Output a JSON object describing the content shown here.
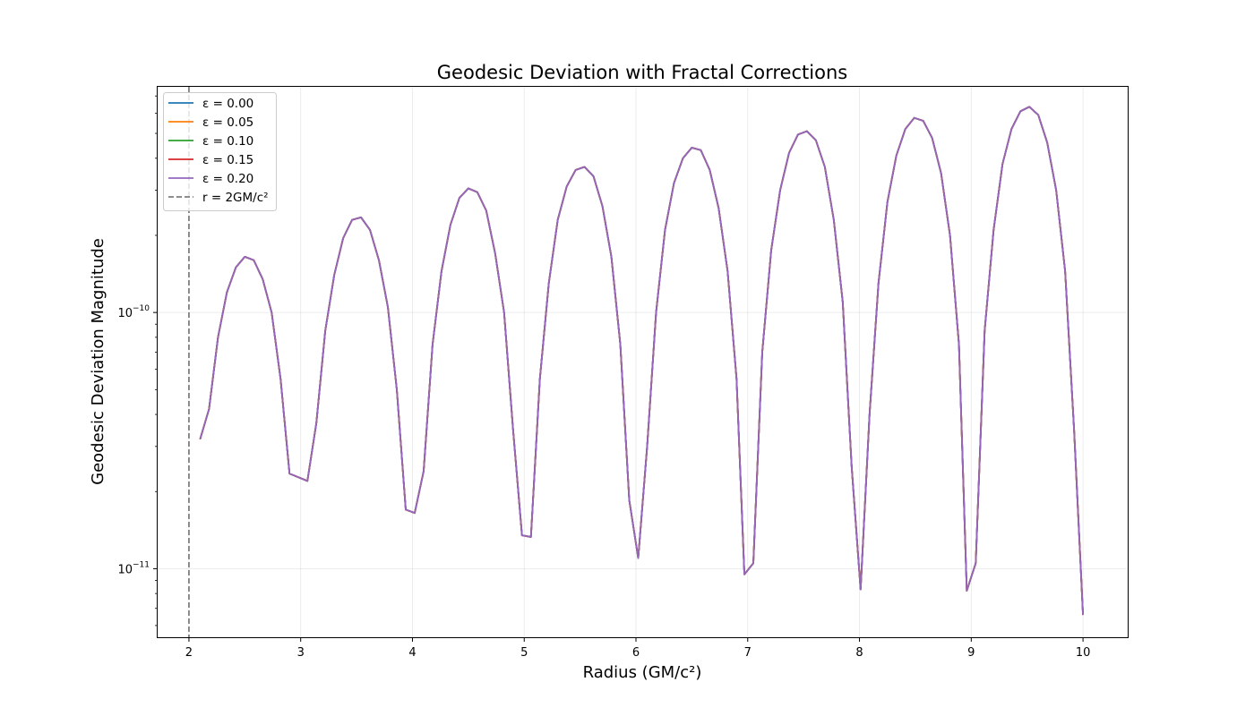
{
  "chart_data": {
    "type": "line",
    "title": "Geodesic Deviation with Fractal Corrections",
    "xlabel": "Radius (GM/c²)",
    "ylabel": "Geodesic Deviation Magnitude",
    "xlim": [
      1.72,
      10.4
    ],
    "ylim": [
      5.4e-12,
      7.6e-10
    ],
    "yscale": "log",
    "grid": true,
    "legend_position": "top-left",
    "x_ticks": [
      2,
      3,
      4,
      5,
      6,
      7,
      8,
      9,
      10
    ],
    "x_tick_labels": [
      "2",
      "3",
      "4",
      "5",
      "6",
      "7",
      "8",
      "9",
      "10"
    ],
    "y_ticks": [
      1e-10,
      1e-11
    ],
    "y_tick_labels": [
      {
        "base": "10",
        "exp": "−10"
      },
      {
        "base": "10",
        "exp": "−11"
      }
    ],
    "x": [
      2.1,
      2.18,
      2.26,
      2.34,
      2.42,
      2.5,
      2.58,
      2.66,
      2.74,
      2.82,
      2.9,
      3.06,
      3.14,
      3.22,
      3.3,
      3.38,
      3.46,
      3.54,
      3.62,
      3.7,
      3.78,
      3.86,
      3.94,
      4.02,
      4.1,
      4.18,
      4.26,
      4.34,
      4.42,
      4.5,
      4.58,
      4.66,
      4.74,
      4.82,
      4.9,
      4.98,
      5.06,
      5.14,
      5.22,
      5.3,
      5.38,
      5.46,
      5.54,
      5.62,
      5.7,
      5.78,
      5.86,
      5.94,
      6.02,
      6.1,
      6.18,
      6.26,
      6.34,
      6.42,
      6.5,
      6.58,
      6.66,
      6.74,
      6.82,
      6.9,
      6.97,
      7.05,
      7.13,
      7.21,
      7.29,
      7.37,
      7.45,
      7.53,
      7.61,
      7.69,
      7.77,
      7.85,
      7.93,
      8.01,
      8.09,
      8.17,
      8.25,
      8.33,
      8.41,
      8.49,
      8.57,
      8.65,
      8.73,
      8.81,
      8.89,
      8.96,
      9.04,
      9.12,
      9.2,
      9.28,
      9.36,
      9.44,
      9.52,
      9.6,
      9.68,
      9.76,
      9.84,
      9.92,
      10.0
    ],
    "series": [
      {
        "name": "ε = 0.00",
        "color": "#1f77b4",
        "style": "solid",
        "values": [
          3.2e-11,
          4.2e-11,
          8e-11,
          1.2e-10,
          1.5e-10,
          1.65e-10,
          1.6e-10,
          1.35e-10,
          1e-10,
          5.5e-11,
          2.35e-11,
          2.2e-11,
          3.7e-11,
          8.5e-11,
          1.4e-10,
          1.95e-10,
          2.3e-10,
          2.35e-10,
          2.1e-10,
          1.6e-10,
          1.05e-10,
          5e-11,
          1.7e-11,
          1.65e-11,
          2.4e-11,
          7.5e-11,
          1.45e-10,
          2.2e-10,
          2.8e-10,
          3.05e-10,
          2.95e-10,
          2.5e-10,
          1.7e-10,
          1e-10,
          3.5e-11,
          1.35e-11,
          1.33e-11,
          5.5e-11,
          1.3e-10,
          2.3e-10,
          3.1e-10,
          3.6e-10,
          3.7e-10,
          3.4e-10,
          2.6e-10,
          1.65e-10,
          7.5e-11,
          1.85e-11,
          1.1e-11,
          3e-11,
          1e-10,
          2.1e-10,
          3.2e-10,
          4e-10,
          4.4e-10,
          4.3e-10,
          3.6e-10,
          2.55e-10,
          1.45e-10,
          5.5e-11,
          9.5e-12,
          1.05e-11,
          7e-11,
          1.75e-10,
          3e-10,
          4.2e-10,
          4.95e-10,
          5.1e-10,
          4.7e-10,
          3.7e-10,
          2.3e-10,
          1.1e-10,
          2.5e-11,
          8.3e-12,
          4e-11,
          1.3e-10,
          2.7e-10,
          4.1e-10,
          5.2e-10,
          5.75e-10,
          5.6e-10,
          4.8e-10,
          3.5e-10,
          2e-10,
          7.5e-11,
          8.2e-12,
          1.05e-11,
          8.5e-11,
          2.1e-10,
          3.8e-10,
          5.2e-10,
          6.1e-10,
          6.35e-10,
          5.9e-10,
          4.6e-10,
          3e-10,
          1.45e-10,
          3.5e-11,
          6.6e-12
        ]
      },
      {
        "name": "ε = 0.05",
        "color": "#ff7f0e",
        "style": "solid",
        "values": [
          3.2e-11,
          4.2e-11,
          8e-11,
          1.2e-10,
          1.5e-10,
          1.65e-10,
          1.6e-10,
          1.35e-10,
          1e-10,
          5.5e-11,
          2.35e-11,
          2.2e-11,
          3.7e-11,
          8.5e-11,
          1.4e-10,
          1.95e-10,
          2.3e-10,
          2.35e-10,
          2.1e-10,
          1.6e-10,
          1.05e-10,
          5e-11,
          1.7e-11,
          1.65e-11,
          2.4e-11,
          7.5e-11,
          1.45e-10,
          2.2e-10,
          2.8e-10,
          3.05e-10,
          2.95e-10,
          2.5e-10,
          1.7e-10,
          1e-10,
          3.5e-11,
          1.35e-11,
          1.33e-11,
          5.5e-11,
          1.3e-10,
          2.3e-10,
          3.1e-10,
          3.6e-10,
          3.7e-10,
          3.4e-10,
          2.6e-10,
          1.65e-10,
          7.5e-11,
          1.85e-11,
          1.1e-11,
          3e-11,
          1e-10,
          2.1e-10,
          3.2e-10,
          4e-10,
          4.4e-10,
          4.3e-10,
          3.6e-10,
          2.55e-10,
          1.45e-10,
          5.5e-11,
          9.5e-12,
          1.05e-11,
          7e-11,
          1.75e-10,
          3e-10,
          4.2e-10,
          4.95e-10,
          5.1e-10,
          4.7e-10,
          3.7e-10,
          2.3e-10,
          1.1e-10,
          2.5e-11,
          8.3e-12,
          4e-11,
          1.3e-10,
          2.7e-10,
          4.1e-10,
          5.2e-10,
          5.75e-10,
          5.6e-10,
          4.8e-10,
          3.5e-10,
          2e-10,
          7.5e-11,
          8.2e-12,
          1.05e-11,
          8.5e-11,
          2.1e-10,
          3.8e-10,
          5.2e-10,
          6.1e-10,
          6.35e-10,
          5.9e-10,
          4.6e-10,
          3e-10,
          1.45e-10,
          3.5e-11,
          6.6e-12
        ]
      },
      {
        "name": "ε = 0.10",
        "color": "#2ca02c",
        "style": "solid",
        "values": [
          3.2e-11,
          4.2e-11,
          8e-11,
          1.2e-10,
          1.5e-10,
          1.65e-10,
          1.6e-10,
          1.35e-10,
          1e-10,
          5.5e-11,
          2.35e-11,
          2.2e-11,
          3.7e-11,
          8.5e-11,
          1.4e-10,
          1.95e-10,
          2.3e-10,
          2.35e-10,
          2.1e-10,
          1.6e-10,
          1.05e-10,
          5e-11,
          1.7e-11,
          1.65e-11,
          2.4e-11,
          7.5e-11,
          1.45e-10,
          2.2e-10,
          2.8e-10,
          3.05e-10,
          2.95e-10,
          2.5e-10,
          1.7e-10,
          1e-10,
          3.5e-11,
          1.35e-11,
          1.33e-11,
          5.5e-11,
          1.3e-10,
          2.3e-10,
          3.1e-10,
          3.6e-10,
          3.7e-10,
          3.4e-10,
          2.6e-10,
          1.65e-10,
          7.5e-11,
          1.85e-11,
          1.1e-11,
          3e-11,
          1e-10,
          2.1e-10,
          3.2e-10,
          4e-10,
          4.4e-10,
          4.3e-10,
          3.6e-10,
          2.55e-10,
          1.45e-10,
          5.5e-11,
          9.5e-12,
          1.05e-11,
          7e-11,
          1.75e-10,
          3e-10,
          4.2e-10,
          4.95e-10,
          5.1e-10,
          4.7e-10,
          3.7e-10,
          2.3e-10,
          1.1e-10,
          2.5e-11,
          8.3e-12,
          4e-11,
          1.3e-10,
          2.7e-10,
          4.1e-10,
          5.2e-10,
          5.75e-10,
          5.6e-10,
          4.8e-10,
          3.5e-10,
          2e-10,
          7.5e-11,
          8.2e-12,
          1.05e-11,
          8.5e-11,
          2.1e-10,
          3.8e-10,
          5.2e-10,
          6.1e-10,
          6.35e-10,
          5.9e-10,
          4.6e-10,
          3e-10,
          1.45e-10,
          3.5e-11,
          6.6e-12
        ]
      },
      {
        "name": "ε = 0.15",
        "color": "#d62728",
        "style": "solid",
        "values": [
          3.2e-11,
          4.2e-11,
          8e-11,
          1.2e-10,
          1.5e-10,
          1.65e-10,
          1.6e-10,
          1.35e-10,
          1e-10,
          5.5e-11,
          2.35e-11,
          2.2e-11,
          3.7e-11,
          8.5e-11,
          1.4e-10,
          1.95e-10,
          2.3e-10,
          2.35e-10,
          2.1e-10,
          1.6e-10,
          1.05e-10,
          5e-11,
          1.7e-11,
          1.65e-11,
          2.4e-11,
          7.5e-11,
          1.45e-10,
          2.2e-10,
          2.8e-10,
          3.05e-10,
          2.95e-10,
          2.5e-10,
          1.7e-10,
          1e-10,
          3.5e-11,
          1.35e-11,
          1.33e-11,
          5.5e-11,
          1.3e-10,
          2.3e-10,
          3.1e-10,
          3.6e-10,
          3.7e-10,
          3.4e-10,
          2.6e-10,
          1.65e-10,
          7.5e-11,
          1.85e-11,
          1.1e-11,
          3e-11,
          1e-10,
          2.1e-10,
          3.2e-10,
          4e-10,
          4.4e-10,
          4.3e-10,
          3.6e-10,
          2.55e-10,
          1.45e-10,
          5.5e-11,
          9.5e-12,
          1.05e-11,
          7e-11,
          1.75e-10,
          3e-10,
          4.2e-10,
          4.95e-10,
          5.1e-10,
          4.7e-10,
          3.7e-10,
          2.3e-10,
          1.1e-10,
          2.5e-11,
          8.3e-12,
          4e-11,
          1.3e-10,
          2.7e-10,
          4.1e-10,
          5.2e-10,
          5.75e-10,
          5.6e-10,
          4.8e-10,
          3.5e-10,
          2e-10,
          7.5e-11,
          8.2e-12,
          1.05e-11,
          8.5e-11,
          2.1e-10,
          3.8e-10,
          5.2e-10,
          6.1e-10,
          6.35e-10,
          5.9e-10,
          4.6e-10,
          3e-10,
          1.45e-10,
          3.5e-11,
          6.6e-12
        ]
      },
      {
        "name": "ε = 0.20",
        "color": "#9467bd",
        "style": "solid",
        "values": [
          3.2e-11,
          4.2e-11,
          8e-11,
          1.2e-10,
          1.5e-10,
          1.65e-10,
          1.6e-10,
          1.35e-10,
          1e-10,
          5.5e-11,
          2.35e-11,
          2.2e-11,
          3.7e-11,
          8.5e-11,
          1.4e-10,
          1.95e-10,
          2.3e-10,
          2.35e-10,
          2.1e-10,
          1.6e-10,
          1.05e-10,
          5e-11,
          1.7e-11,
          1.65e-11,
          2.4e-11,
          7.5e-11,
          1.45e-10,
          2.2e-10,
          2.8e-10,
          3.05e-10,
          2.95e-10,
          2.5e-10,
          1.7e-10,
          1e-10,
          3.5e-11,
          1.35e-11,
          1.33e-11,
          5.5e-11,
          1.3e-10,
          2.3e-10,
          3.1e-10,
          3.6e-10,
          3.7e-10,
          3.4e-10,
          2.6e-10,
          1.65e-10,
          7.5e-11,
          1.85e-11,
          1.1e-11,
          3e-11,
          1e-10,
          2.1e-10,
          3.2e-10,
          4e-10,
          4.4e-10,
          4.3e-10,
          3.6e-10,
          2.55e-10,
          1.45e-10,
          5.5e-11,
          9.5e-12,
          1.05e-11,
          7e-11,
          1.75e-10,
          3e-10,
          4.2e-10,
          4.95e-10,
          5.1e-10,
          4.7e-10,
          3.7e-10,
          2.3e-10,
          1.1e-10,
          2.5e-11,
          8.3e-12,
          4e-11,
          1.3e-10,
          2.7e-10,
          4.1e-10,
          5.2e-10,
          5.75e-10,
          5.6e-10,
          4.8e-10,
          3.5e-10,
          2e-10,
          7.5e-11,
          8.2e-12,
          1.05e-11,
          8.5e-11,
          2.1e-10,
          3.8e-10,
          5.2e-10,
          6.1e-10,
          6.35e-10,
          5.9e-10,
          4.6e-10,
          3e-10,
          1.45e-10,
          3.5e-11,
          6.6e-12
        ]
      }
    ],
    "reference_line": {
      "name": "r = 2GM/c²",
      "x": 2,
      "color": "#7f7f7f",
      "style": "dashed"
    }
  }
}
